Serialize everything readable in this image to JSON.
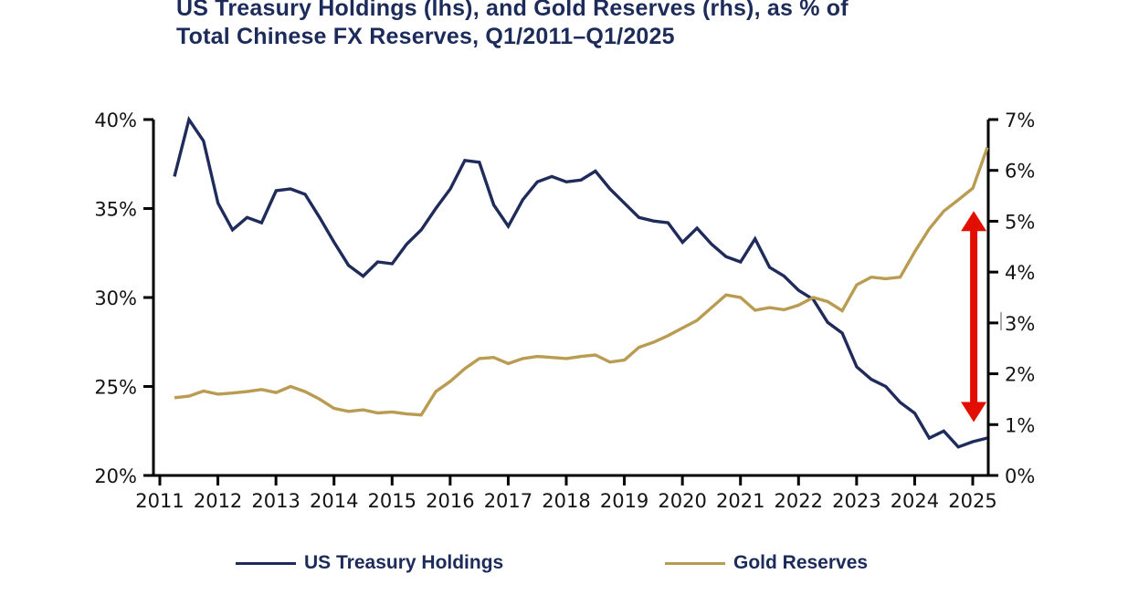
{
  "page": {
    "background_color": "#ffffff"
  },
  "title": {
    "line1": "US Treasury Holdings (lhs), and Gold Reserves (rhs), as % of",
    "line2": "Total Chinese FX Reserves, Q1/2011–Q1/2025",
    "color": "#1c2b5a"
  },
  "legend": {
    "items": [
      {
        "id": "us-treasury-holdings",
        "label": "US Treasury Holdings",
        "color": "#1f2b5b"
      },
      {
        "id": "gold-reserves",
        "label": "Gold Reserves",
        "color": "#b99c52"
      }
    ]
  },
  "chart_data": {
    "type": "line",
    "title": "US Treasury Holdings (lhs), and Gold Reserves (rhs), as % of Total Chinese FX Reserves, Q1/2011–Q1/2025",
    "frequency": "quarterly",
    "grid": false,
    "legend_position": "bottom",
    "x": [
      "Q1/2011",
      "Q2/2011",
      "Q3/2011",
      "Q4/2011",
      "Q1/2012",
      "Q2/2012",
      "Q3/2012",
      "Q4/2012",
      "Q1/2013",
      "Q2/2013",
      "Q3/2013",
      "Q4/2013",
      "Q1/2014",
      "Q2/2014",
      "Q3/2014",
      "Q4/2014",
      "Q1/2015",
      "Q2/2015",
      "Q3/2015",
      "Q4/2015",
      "Q1/2016",
      "Q2/2016",
      "Q3/2016",
      "Q4/2016",
      "Q1/2017",
      "Q2/2017",
      "Q3/2017",
      "Q4/2017",
      "Q1/2018",
      "Q2/2018",
      "Q3/2018",
      "Q4/2018",
      "Q1/2019",
      "Q2/2019",
      "Q3/2019",
      "Q4/2019",
      "Q1/2020",
      "Q2/2020",
      "Q3/2020",
      "Q4/2020",
      "Q1/2021",
      "Q2/2021",
      "Q3/2021",
      "Q4/2021",
      "Q1/2022",
      "Q2/2022",
      "Q3/2022",
      "Q4/2022",
      "Q1/2023",
      "Q2/2023",
      "Q3/2023",
      "Q4/2023",
      "Q1/2024",
      "Q2/2024",
      "Q3/2024",
      "Q4/2024",
      "Q1/2025"
    ],
    "x_axis": {
      "tick_labels": [
        "2011",
        "2012",
        "2013",
        "2014",
        "2015",
        "2016",
        "2017",
        "2018",
        "2019",
        "2020",
        "2021",
        "2022",
        "2023",
        "2024",
        "2025"
      ]
    },
    "left_axis": {
      "min": 20,
      "max": 40,
      "tick_values": [
        20,
        25,
        30,
        35,
        40
      ],
      "tick_labels": [
        "20%",
        "25%",
        "30%",
        "35%",
        "40%"
      ]
    },
    "right_axis": {
      "min": 0,
      "max": 7,
      "tick_values": [
        0,
        1,
        2,
        3,
        4,
        5,
        6,
        7
      ],
      "tick_labels": [
        "0%",
        "1%",
        "2%",
        "3%",
        "4%",
        "5%",
        "6%",
        "7%"
      ]
    },
    "series": [
      {
        "id": "us-treasury-holdings",
        "name": "US Treasury Holdings",
        "axis": "left",
        "color": "#1f2b5b",
        "values": [
          36.8,
          40.0,
          38.8,
          35.3,
          33.8,
          34.5,
          34.2,
          36.0,
          36.1,
          35.8,
          34.5,
          33.1,
          31.8,
          31.2,
          32.0,
          31.9,
          33.0,
          33.8,
          35.0,
          36.1,
          37.7,
          37.6,
          35.2,
          34.0,
          35.5,
          36.5,
          36.8,
          36.5,
          36.6,
          37.1,
          36.1,
          35.3,
          34.5,
          34.3,
          34.2,
          33.1,
          33.9,
          33.0,
          32.3,
          32.0,
          33.3,
          31.7,
          31.2,
          30.4,
          29.9,
          28.6,
          28.0,
          26.1,
          25.4,
          25.0,
          24.1,
          23.5,
          22.1,
          22.5,
          21.6,
          21.9,
          22.1
        ]
      },
      {
        "id": "gold-reserves",
        "name": "Gold Reserves",
        "axis": "right",
        "color": "#b99c52",
        "values": [
          1.53,
          1.56,
          1.66,
          1.6,
          1.62,
          1.65,
          1.69,
          1.63,
          1.75,
          1.65,
          1.5,
          1.32,
          1.26,
          1.29,
          1.23,
          1.25,
          1.21,
          1.19,
          1.65,
          1.85,
          2.1,
          2.3,
          2.32,
          2.2,
          2.3,
          2.34,
          2.32,
          2.3,
          2.34,
          2.37,
          2.23,
          2.27,
          2.52,
          2.62,
          2.75,
          2.9,
          3.05,
          3.3,
          3.55,
          3.5,
          3.25,
          3.3,
          3.26,
          3.35,
          3.5,
          3.42,
          3.24,
          3.75,
          3.9,
          3.87,
          3.9,
          4.4,
          4.85,
          5.2,
          5.42,
          5.65,
          6.45
        ]
      }
    ],
    "annotation": {
      "type": "vertical-double-arrow",
      "color": "#e20f00",
      "x_quarter": "Q4/2024",
      "rhs_bottom_pct": 1.05,
      "rhs_top_pct": 5.2
    }
  }
}
